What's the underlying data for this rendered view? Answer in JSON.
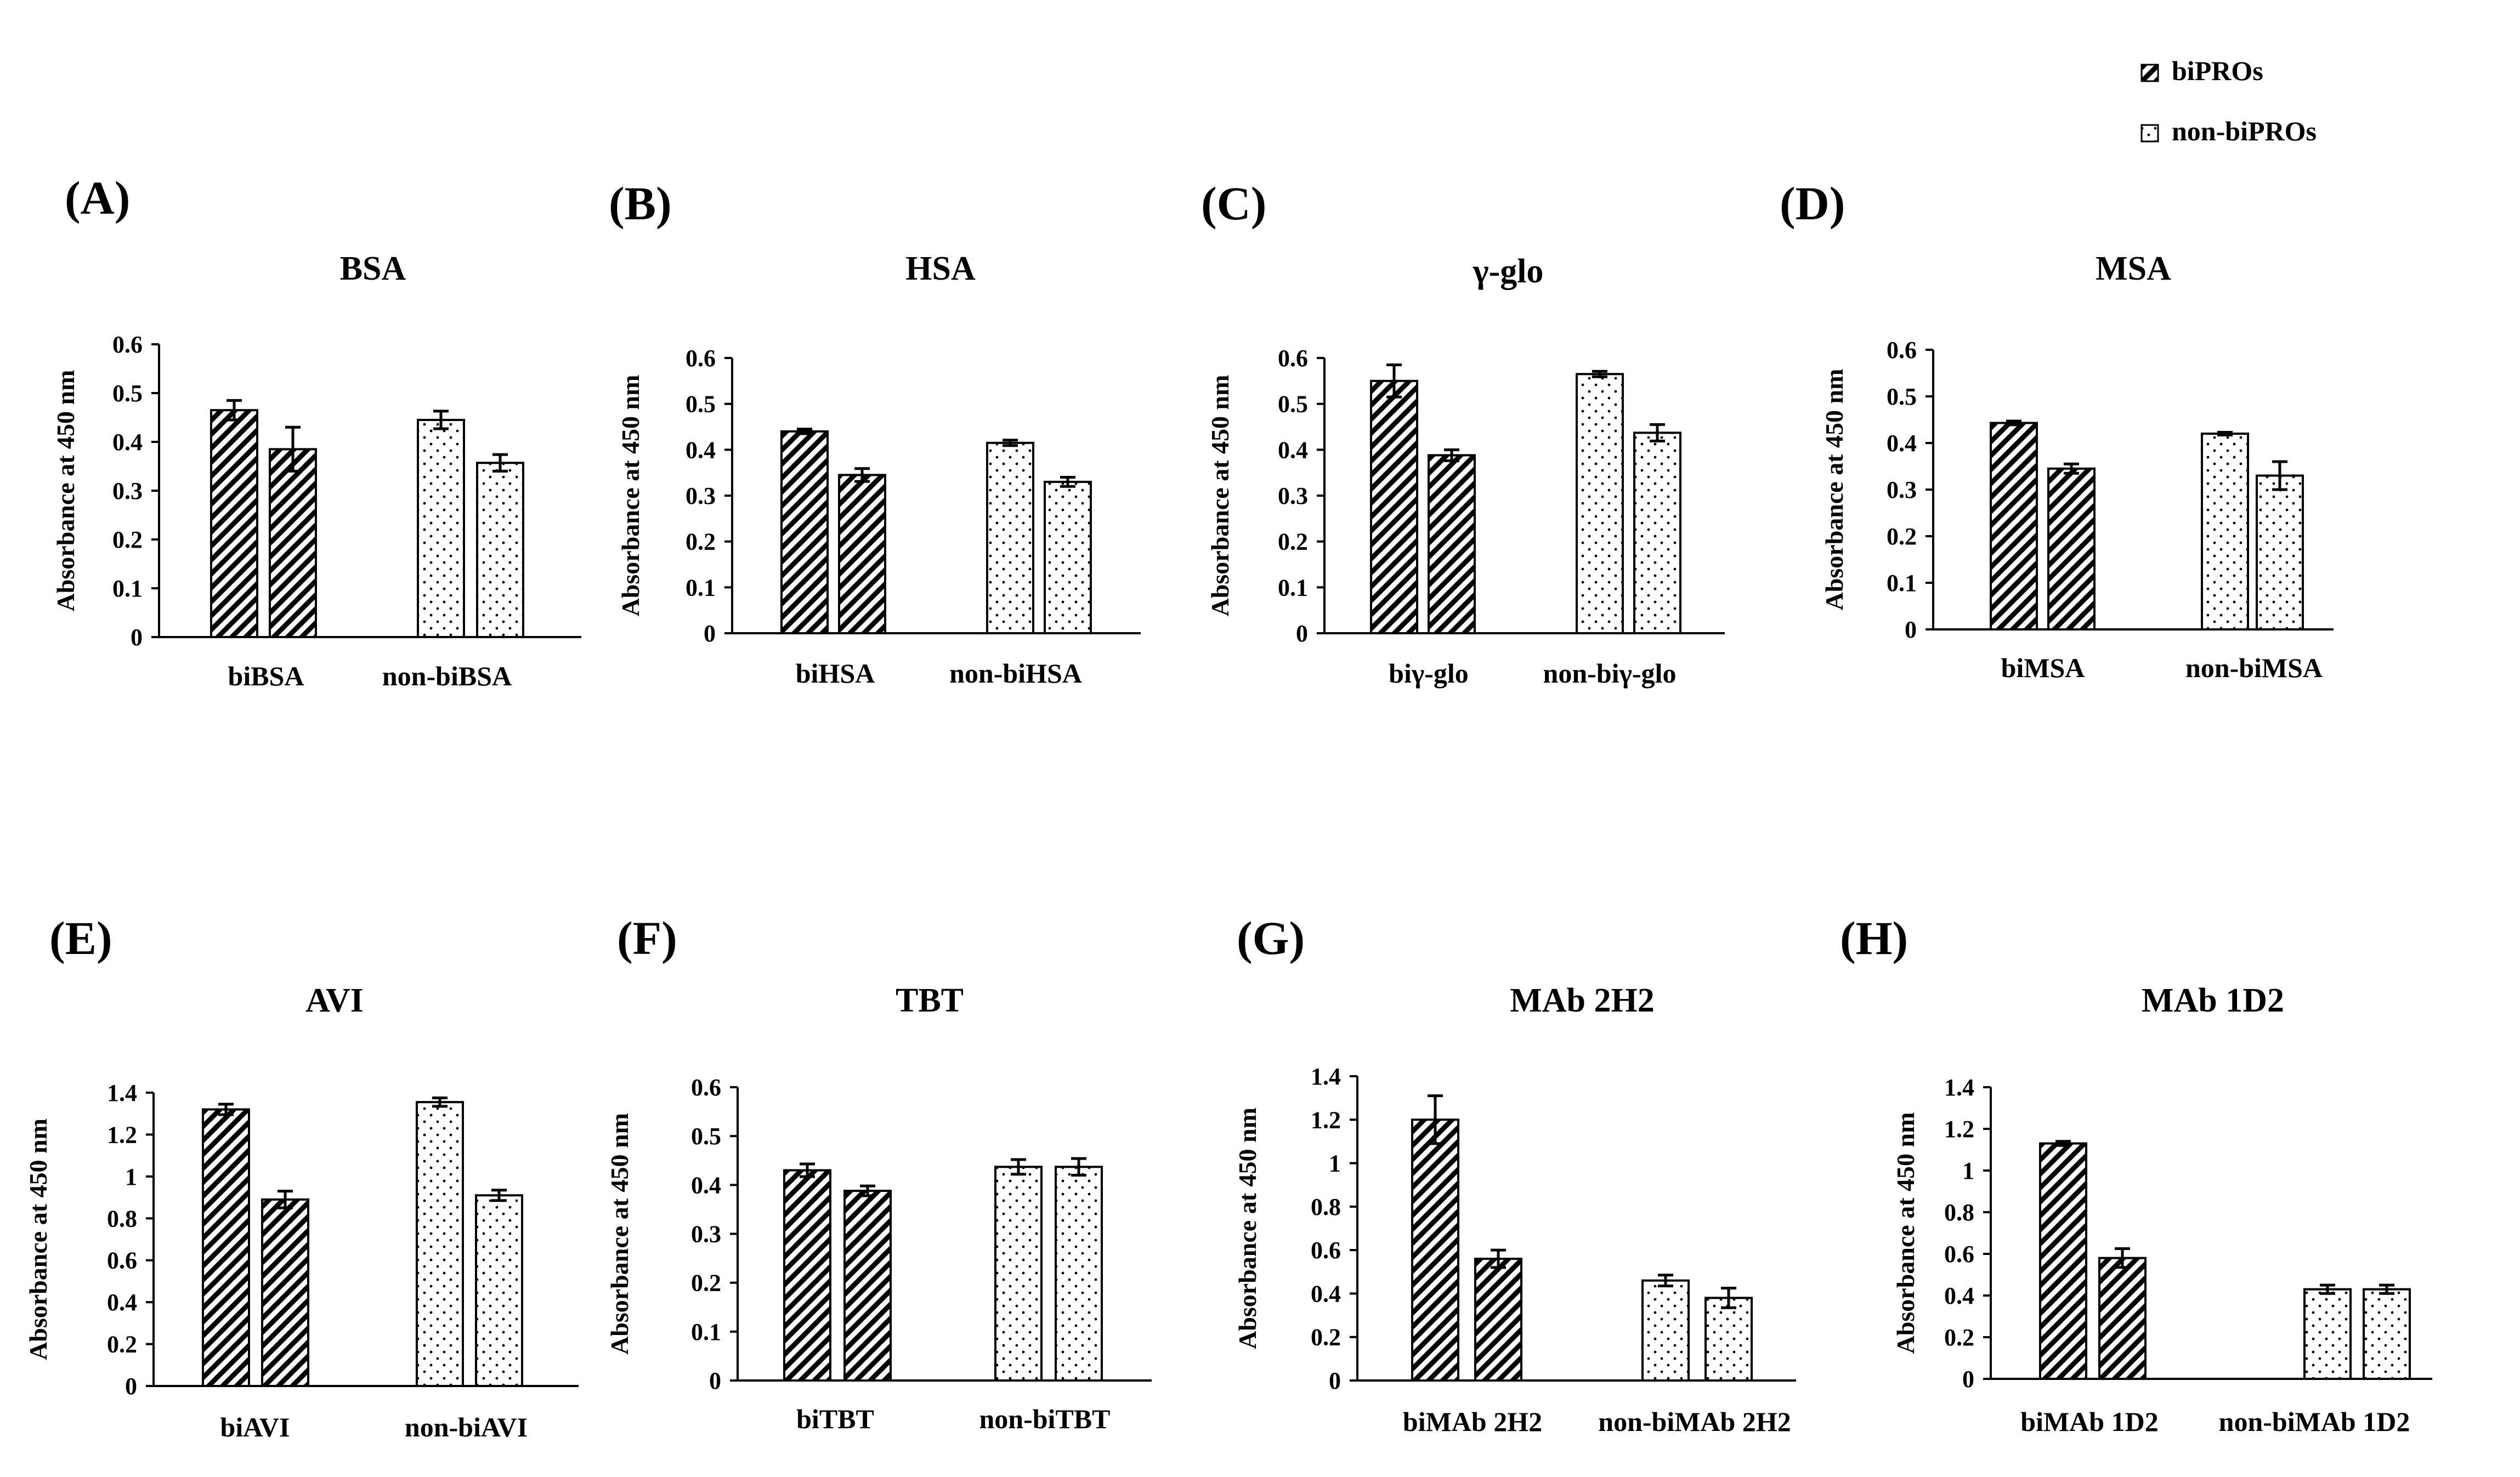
{
  "legend": {
    "items": [
      {
        "label": "biPROs",
        "pattern": "hatch"
      },
      {
        "label": "non-biPROs",
        "pattern": "dots"
      }
    ]
  },
  "colors": {
    "bar_stroke": "#000000",
    "background": "#ffffff",
    "pattern_ink": "#000000"
  },
  "chart_data": [
    {
      "panel": "(A)",
      "type": "bar",
      "title": "BSA",
      "ylabel": "Absorbance at 450 nm",
      "ylim": [
        0,
        0.6
      ],
      "yticks": [
        "0",
        "0.1",
        "0.2",
        "0.3",
        "0.4",
        "0.5",
        "0.6"
      ],
      "categories": [
        "biBSA",
        "non-biBSA"
      ],
      "bars": [
        {
          "group": 0,
          "pattern": "hatch",
          "value": 0.465,
          "error": 0.02
        },
        {
          "group": 0,
          "pattern": "hatch",
          "value": 0.385,
          "error": 0.045
        },
        {
          "group": 1,
          "pattern": "dots",
          "value": 0.445,
          "error": 0.018
        },
        {
          "group": 1,
          "pattern": "dots",
          "value": 0.357,
          "error": 0.017
        }
      ]
    },
    {
      "panel": "(B)",
      "type": "bar",
      "title": "HSA",
      "ylabel": "Absorbance at 450 nm",
      "ylim": [
        0,
        0.6
      ],
      "yticks": [
        "0",
        "0.1",
        "0.2",
        "0.3",
        "0.4",
        "0.5",
        "0.6"
      ],
      "categories": [
        "biHSA",
        "non-biHSA"
      ],
      "bars": [
        {
          "group": 0,
          "pattern": "hatch",
          "value": 0.44,
          "error": 0.005
        },
        {
          "group": 0,
          "pattern": "hatch",
          "value": 0.345,
          "error": 0.014
        },
        {
          "group": 1,
          "pattern": "dots",
          "value": 0.415,
          "error": 0.006
        },
        {
          "group": 1,
          "pattern": "dots",
          "value": 0.33,
          "error": 0.01
        }
      ]
    },
    {
      "panel": "(C)",
      "type": "bar",
      "title": "γ-glo",
      "ylabel": "Absorbance at 450 nm",
      "ylim": [
        0,
        0.6
      ],
      "yticks": [
        "0",
        "0.1",
        "0.2",
        "0.3",
        "0.4",
        "0.5",
        "0.6"
      ],
      "categories": [
        "biγ-glo",
        "non-biγ-glo"
      ],
      "bars": [
        {
          "group": 0,
          "pattern": "hatch",
          "value": 0.55,
          "error": 0.035
        },
        {
          "group": 0,
          "pattern": "hatch",
          "value": 0.388,
          "error": 0.012
        },
        {
          "group": 1,
          "pattern": "dots",
          "value": 0.565,
          "error": 0.006
        },
        {
          "group": 1,
          "pattern": "dots",
          "value": 0.437,
          "error": 0.018
        }
      ]
    },
    {
      "panel": "(D)",
      "type": "bar",
      "title": "MSA",
      "ylabel": "Absorbance at 450 nm",
      "ylim": [
        0,
        0.6
      ],
      "yticks": [
        "0",
        "0.1",
        "0.2",
        "0.3",
        "0.4",
        "0.5",
        "0.6"
      ],
      "categories": [
        "biMSA",
        "non-biMSA"
      ],
      "bars": [
        {
          "group": 0,
          "pattern": "hatch",
          "value": 0.443,
          "error": 0.004
        },
        {
          "group": 0,
          "pattern": "hatch",
          "value": 0.345,
          "error": 0.01
        },
        {
          "group": 1,
          "pattern": "dots",
          "value": 0.42,
          "error": 0.003
        },
        {
          "group": 1,
          "pattern": "dots",
          "value": 0.33,
          "error": 0.03
        }
      ]
    },
    {
      "panel": "(E)",
      "type": "bar",
      "title": "AVI",
      "ylabel": "Absorbance at 450 nm",
      "ylim": [
        0,
        1.4
      ],
      "yticks": [
        "0",
        "0.2",
        "0.4",
        "0.6",
        "0.8",
        "1",
        "1.2",
        "1.4"
      ],
      "categories": [
        "biAVI",
        "non-biAVI"
      ],
      "bars": [
        {
          "group": 0,
          "pattern": "hatch",
          "value": 1.32,
          "error": 0.025
        },
        {
          "group": 0,
          "pattern": "hatch",
          "value": 0.89,
          "error": 0.04
        },
        {
          "group": 1,
          "pattern": "dots",
          "value": 1.355,
          "error": 0.02
        },
        {
          "group": 1,
          "pattern": "dots",
          "value": 0.91,
          "error": 0.025
        }
      ]
    },
    {
      "panel": "(F)",
      "type": "bar",
      "title": "TBT",
      "ylabel": "Absorbance at 450 nm",
      "ylim": [
        0,
        0.6
      ],
      "yticks": [
        "0",
        "0.1",
        "0.2",
        "0.3",
        "0.4",
        "0.5",
        "0.6"
      ],
      "categories": [
        "biTBT",
        "non-biTBT"
      ],
      "bars": [
        {
          "group": 0,
          "pattern": "hatch",
          "value": 0.43,
          "error": 0.013
        },
        {
          "group": 0,
          "pattern": "hatch",
          "value": 0.388,
          "error": 0.01
        },
        {
          "group": 1,
          "pattern": "dots",
          "value": 0.437,
          "error": 0.015
        },
        {
          "group": 1,
          "pattern": "dots",
          "value": 0.437,
          "error": 0.017
        }
      ]
    },
    {
      "panel": "(G)",
      "type": "bar",
      "title": "MAb 2H2",
      "ylabel": "Absorbance at 450 nm",
      "ylim": [
        0,
        1.4
      ],
      "yticks": [
        "0",
        "0.2",
        "0.4",
        "0.6",
        "0.8",
        "1",
        "1.2",
        "1.4"
      ],
      "categories": [
        "biMAb 2H2",
        "non-biMAb 2H2"
      ],
      "bars": [
        {
          "group": 0,
          "pattern": "hatch",
          "value": 1.2,
          "error": 0.11
        },
        {
          "group": 0,
          "pattern": "hatch",
          "value": 0.56,
          "error": 0.04
        },
        {
          "group": 1,
          "pattern": "dots",
          "value": 0.46,
          "error": 0.025
        },
        {
          "group": 1,
          "pattern": "dots",
          "value": 0.38,
          "error": 0.045
        }
      ]
    },
    {
      "panel": "(H)",
      "type": "bar",
      "title": "MAb 1D2",
      "ylabel": "Absorbance at 450 nm",
      "ylim": [
        0,
        1.4
      ],
      "yticks": [
        "0",
        "0.2",
        "0.4",
        "0.6",
        "0.8",
        "1",
        "1.2",
        "1.4"
      ],
      "categories": [
        "biMAb 1D2",
        "non-biMAb 1D2"
      ],
      "bars": [
        {
          "group": 0,
          "pattern": "hatch",
          "value": 1.13,
          "error": 0.01
        },
        {
          "group": 0,
          "pattern": "hatch",
          "value": 0.58,
          "error": 0.045
        },
        {
          "group": 1,
          "pattern": "dots",
          "value": 0.43,
          "error": 0.02
        },
        {
          "group": 1,
          "pattern": "dots",
          "value": 0.43,
          "error": 0.02
        }
      ]
    }
  ]
}
